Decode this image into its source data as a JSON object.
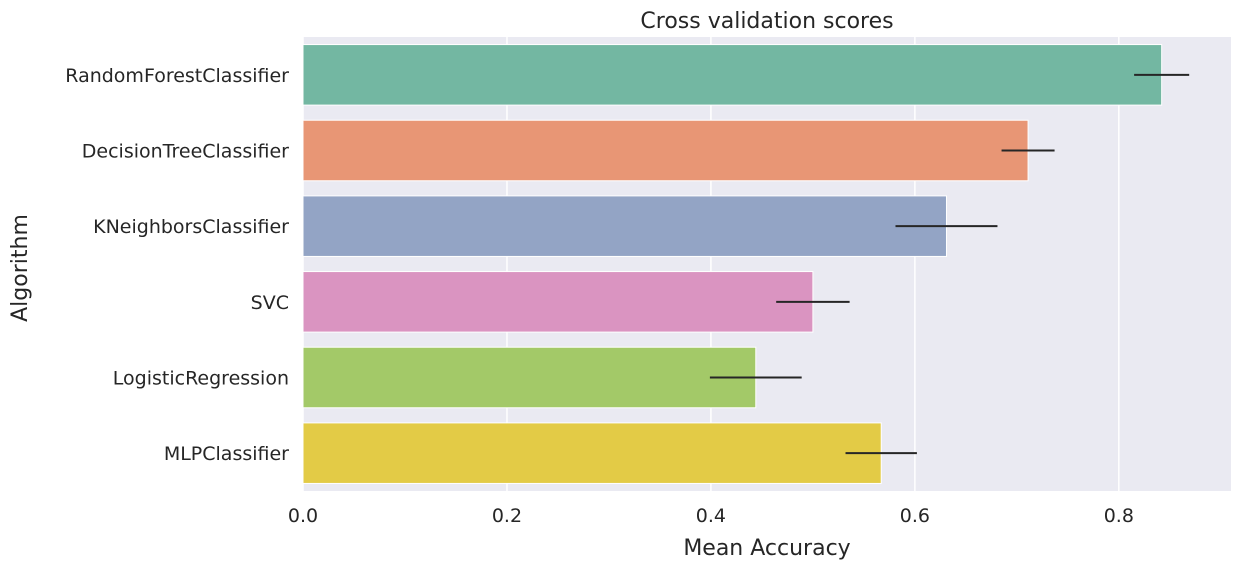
{
  "chart_data": {
    "type": "bar",
    "orientation": "horizontal",
    "title": "Cross validation scores",
    "xlabel": "Mean Accuracy",
    "ylabel": "Algorithm",
    "xlim": [
      0,
      0.91
    ],
    "x_ticks": [
      0.0,
      0.2,
      0.4,
      0.6,
      0.8
    ],
    "x_tick_labels": [
      "0.0",
      "0.2",
      "0.4",
      "0.6",
      "0.8"
    ],
    "grid": true,
    "categories": [
      "RandomForestClassifier",
      "DecisionTreeClassifier",
      "KNeighborsClassifier",
      "SVC",
      "LogisticRegression",
      "MLPClassifier"
    ],
    "values": [
      0.842,
      0.711,
      0.631,
      0.5,
      0.444,
      0.567
    ],
    "error": [
      0.027,
      0.026,
      0.05,
      0.036,
      0.045,
      0.035
    ],
    "colors": [
      "#73b7a2",
      "#e89675",
      "#93a4c5",
      "#da94c1",
      "#a3c968",
      "#e3cb46"
    ],
    "background_color": "#eaeaf2",
    "grid_color": "#ffffff",
    "error_bar_color": "#262626"
  }
}
